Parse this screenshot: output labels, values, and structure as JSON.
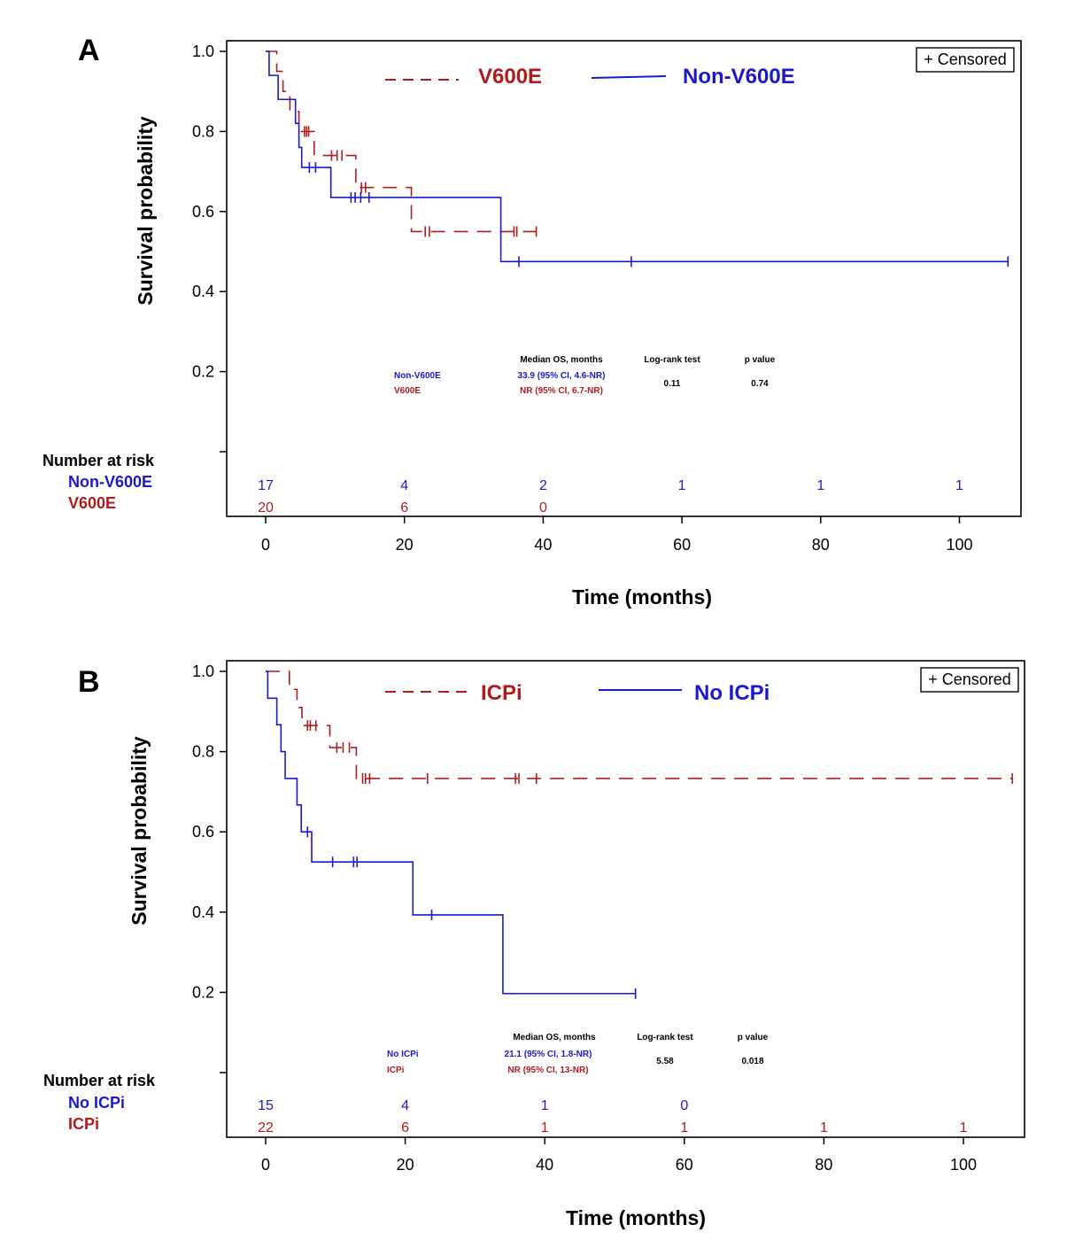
{
  "colors": {
    "blue": "#1a1acc",
    "red": "#b01c1c",
    "black": "#000000"
  },
  "chart_data": [
    {
      "type": "line",
      "panel": "A",
      "xlabel": "Time (months)",
      "ylabel": "Survival probability",
      "xlim": [
        0,
        110
      ],
      "ylim": [
        0,
        1.0
      ],
      "xticks": [
        "0",
        "20",
        "40",
        "60",
        "80",
        "100"
      ],
      "yticks": [
        "1.0",
        "0.8",
        "0.6",
        "0.4",
        "0.2"
      ],
      "censor_legend": "+ Censored",
      "series": [
        {
          "name": "V600E",
          "color": "#b01c1c",
          "dashed": true,
          "steps": [
            [
              0,
              1.0
            ],
            [
              1.6,
              0.95
            ],
            [
              2.5,
              0.9
            ],
            [
              3.5,
              0.85
            ],
            [
              4.8,
              0.8
            ],
            [
              7.0,
              0.74
            ],
            [
              13.0,
              0.66
            ],
            [
              21.0,
              0.55
            ],
            [
              39.0,
              0.55
            ]
          ],
          "censored": [
            [
              5.6,
              0.8
            ],
            [
              5.9,
              0.8
            ],
            [
              6.2,
              0.8
            ],
            [
              9.5,
              0.74
            ],
            [
              10.3,
              0.74
            ],
            [
              11.0,
              0.74
            ],
            [
              13.8,
              0.66
            ],
            [
              14.4,
              0.66
            ],
            [
              23.0,
              0.55
            ],
            [
              23.6,
              0.55
            ],
            [
              35.8,
              0.55
            ],
            [
              36.2,
              0.55
            ],
            [
              39.0,
              0.55
            ]
          ]
        },
        {
          "name": "Non-V600E",
          "color": "#1a1acc",
          "dashed": false,
          "steps": [
            [
              0,
              1.0
            ],
            [
              0.5,
              0.94
            ],
            [
              1.8,
              0.88
            ],
            [
              4.3,
              0.82
            ],
            [
              4.8,
              0.76
            ],
            [
              5.2,
              0.71
            ],
            [
              9.4,
              0.635
            ],
            [
              33.9,
              0.475
            ],
            [
              107.0,
              0.475
            ]
          ],
          "censored": [
            [
              6.3,
              0.71
            ],
            [
              7.2,
              0.71
            ],
            [
              12.3,
              0.635
            ],
            [
              12.9,
              0.635
            ],
            [
              13.7,
              0.635
            ],
            [
              14.9,
              0.635
            ],
            [
              36.5,
              0.475
            ],
            [
              52.7,
              0.475
            ],
            [
              107.0,
              0.475
            ]
          ]
        }
      ],
      "stats": {
        "header_os": "Median OS, months",
        "header_logrank": "Log-rank test",
        "header_p": "p value",
        "group1": "Non-V600E",
        "group1_os": "33.9 (95% CI, 4.6-NR)",
        "group2": "V600E",
        "group2_os": "NR (95% CI, 6.7-NR)",
        "logrank": "0.11",
        "p": "0.74"
      },
      "risk_table": {
        "header": "Number at risk",
        "rows": [
          {
            "name": "Non-V600E",
            "color": "#1a1acc",
            "times": [
              0,
              20,
              40,
              60,
              80,
              100
            ],
            "values": [
              "17",
              "4",
              "2",
              "1",
              "1",
              "1"
            ]
          },
          {
            "name": "V600E",
            "color": "#b01c1c",
            "times": [
              0,
              20,
              40
            ],
            "values": [
              "20",
              "6",
              "0"
            ]
          }
        ]
      }
    },
    {
      "type": "line",
      "panel": "B",
      "xlabel": "Time (months)",
      "ylabel": "Survival probability",
      "xlim": [
        0,
        110
      ],
      "ylim": [
        0,
        1.0
      ],
      "xticks": [
        "0",
        "20",
        "40",
        "60",
        "80",
        "100"
      ],
      "yticks": [
        "1.0",
        "0.8",
        "0.6",
        "0.4",
        "0.2"
      ],
      "censor_legend": "+ Censored",
      "series": [
        {
          "name": "ICPi",
          "color": "#b01c1c",
          "dashed": true,
          "steps": [
            [
              0,
              1.0
            ],
            [
              3.4,
              0.955
            ],
            [
              4.5,
              0.91
            ],
            [
              5.2,
              0.865
            ],
            [
              9.2,
              0.81
            ],
            [
              13.0,
              0.733
            ],
            [
              107.0,
              0.733
            ]
          ],
          "censored": [
            [
              6.0,
              0.865
            ],
            [
              6.4,
              0.865
            ],
            [
              7.2,
              0.865
            ],
            [
              10.2,
              0.81
            ],
            [
              11.1,
              0.81
            ],
            [
              12.0,
              0.81
            ],
            [
              13.9,
              0.733
            ],
            [
              14.3,
              0.733
            ],
            [
              14.9,
              0.733
            ],
            [
              23.2,
              0.733
            ],
            [
              35.8,
              0.733
            ],
            [
              36.3,
              0.733
            ],
            [
              38.8,
              0.733
            ],
            [
              107.0,
              0.733
            ]
          ]
        },
        {
          "name": "No ICPi",
          "color": "#1a1acc",
          "dashed": false,
          "steps": [
            [
              0,
              1.0
            ],
            [
              0.3,
              0.933
            ],
            [
              1.6,
              0.867
            ],
            [
              2.2,
              0.8
            ],
            [
              2.8,
              0.733
            ],
            [
              4.5,
              0.667
            ],
            [
              5.1,
              0.6
            ],
            [
              6.6,
              0.525
            ],
            [
              21.1,
              0.393
            ],
            [
              34.0,
              0.197
            ],
            [
              53.0,
              0.197
            ]
          ],
          "censored": [
            [
              6.0,
              0.6
            ],
            [
              9.6,
              0.525
            ],
            [
              12.6,
              0.525
            ],
            [
              13.1,
              0.525
            ],
            [
              23.8,
              0.393
            ],
            [
              53.0,
              0.197
            ]
          ]
        }
      ],
      "stats": {
        "header_os": "Median OS, months",
        "header_logrank": "Log-rank test",
        "header_p": "p value",
        "group1": "No ICPi",
        "group1_os": "21.1 (95% CI, 1.8-NR)",
        "group2": "ICPi",
        "group2_os": "NR (95% CI, 13-NR)",
        "logrank": "5.58",
        "p": "0.018"
      },
      "risk_table": {
        "header": "Number at risk",
        "rows": [
          {
            "name": "No ICPi",
            "color": "#1a1acc",
            "times": [
              0,
              20,
              40,
              60
            ],
            "values": [
              "15",
              "4",
              "1",
              "0"
            ]
          },
          {
            "name": "ICPi",
            "color": "#b01c1c",
            "times": [
              0,
              20,
              40,
              60,
              80,
              100
            ],
            "values": [
              "22",
              "6",
              "1",
              "1",
              "1",
              "1"
            ]
          }
        ]
      }
    }
  ],
  "panels": [
    {
      "letter": "A",
      "legend1": "V600E",
      "legend2": "Non-V600E"
    },
    {
      "letter": "B",
      "legend1": "ICPi",
      "legend2": "No ICPi"
    }
  ]
}
